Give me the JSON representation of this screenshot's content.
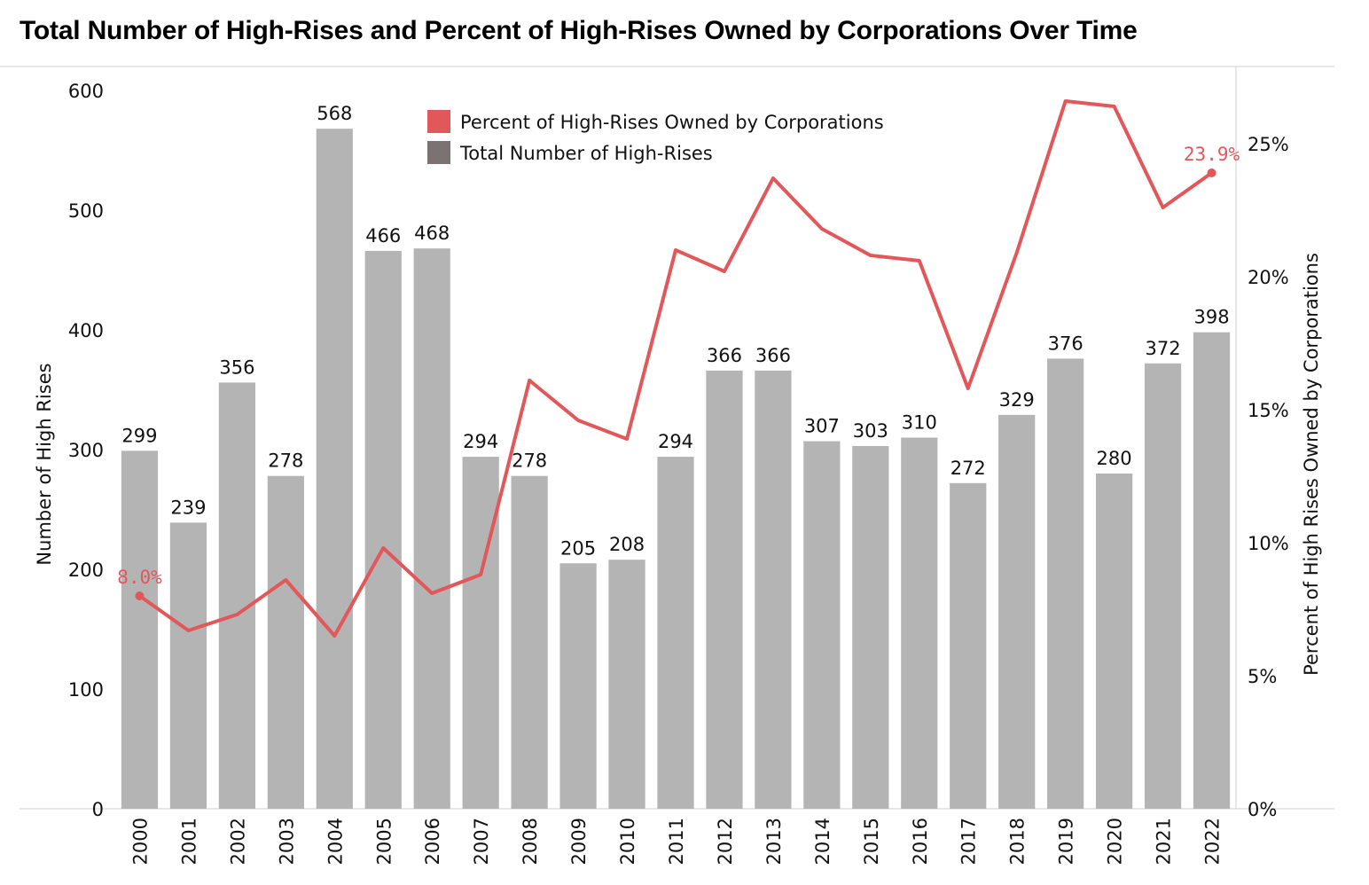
{
  "title": "Total Number of High-Rises and Percent of High-Rises Owned by Corporations Over Time",
  "colors": {
    "bar": "#b4b4b4",
    "line": "#e1575a",
    "legend_bar": "#7a7371",
    "axis": "#cfcfcf"
  },
  "legend": [
    {
      "label": "Percent of High-Rises Owned by Corporations",
      "color": "#e1575a"
    },
    {
      "label": "Total Number of High-Rises",
      "color": "#7a7371"
    }
  ],
  "chart_data": {
    "type": "bar+line",
    "title": "Total Number of High-Rises and Percent of High-Rises Owned by Corporations Over Time",
    "categories": [
      "2000",
      "2001",
      "2002",
      "2003",
      "2004",
      "2005",
      "2006",
      "2007",
      "2008",
      "2009",
      "2010",
      "2011",
      "2012",
      "2013",
      "2014",
      "2015",
      "2016",
      "2017",
      "2018",
      "2019",
      "2020",
      "2021",
      "2022"
    ],
    "series": [
      {
        "name": "Total Number of High-Rises",
        "type": "bar",
        "axis": "left",
        "values": [
          299,
          239,
          356,
          278,
          568,
          466,
          468,
          294,
          278,
          205,
          208,
          294,
          366,
          366,
          307,
          303,
          310,
          272,
          329,
          376,
          280,
          372,
          398
        ]
      },
      {
        "name": "Percent of High-Rises Owned by Corporations",
        "type": "line",
        "axis": "right",
        "values": [
          8.0,
          6.7,
          7.3,
          8.6,
          6.5,
          9.8,
          8.1,
          8.8,
          16.1,
          14.6,
          13.9,
          21.0,
          20.2,
          23.7,
          21.8,
          20.8,
          20.6,
          15.8,
          20.9,
          26.6,
          26.4,
          22.6,
          23.9
        ]
      }
    ],
    "ylabel": "Number of High Rises",
    "y2label": "Percent of High Rises Owned by Corporations",
    "ylim": [
      0,
      600
    ],
    "y2lim": [
      0,
      27
    ],
    "yticks": [
      0,
      100,
      200,
      300,
      400,
      500,
      600
    ],
    "y2ticks": [
      "0%",
      "5%",
      "10%",
      "15%",
      "20%",
      "25%"
    ],
    "line_labels": [
      {
        "index": 0,
        "text": "8.0%"
      },
      {
        "index": 22,
        "text": "23.9%"
      }
    ],
    "legend_position": "top-center",
    "grid": false
  }
}
